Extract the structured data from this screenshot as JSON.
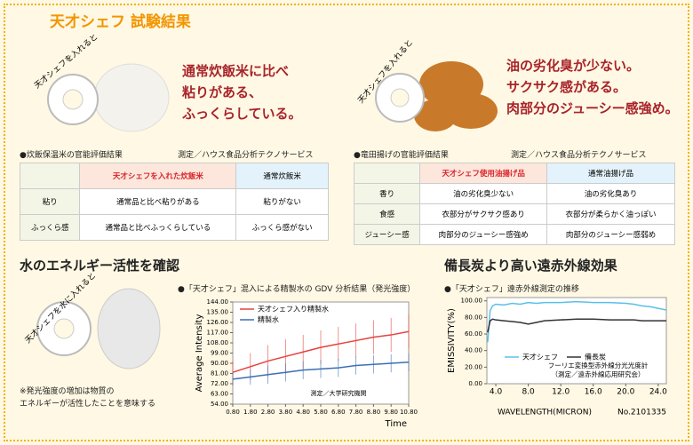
{
  "header": {
    "title": "天才シェフ 試験結果"
  },
  "sections": [
    {
      "ring_label": "天才シェフを入れると",
      "headline": [
        "通常炊飯米に比べ",
        "粘りがある、",
        "ふっくらしている。"
      ],
      "caption": "●炊飯保温米の官能評価結果",
      "source": "測定／ハウス食品分析テクノサービス",
      "table": {
        "header": [
          "",
          "天才シェフを入れた炊飯米",
          "通常炊飯米"
        ],
        "rows": [
          [
            "粘り",
            "通常品と比べ粘りがある",
            "粘りがない"
          ],
          [
            "ふっくら感",
            "通常品と比べふっくらしている",
            "ふっくら感がない"
          ]
        ]
      }
    },
    {
      "ring_label": "天才シェフを入れると",
      "headline": [
        "油の劣化臭が少ない。",
        "サクサク感がある。",
        "肉部分のジューシー感強め。"
      ],
      "caption": "●竜田揚げの官能評価結果",
      "source": "測定／ハウス食品分析テクノサービス",
      "table": {
        "header": [
          "",
          "天才シェフ使用油揚げ品",
          "通常油揚げ品"
        ],
        "rows": [
          [
            "香り",
            "油の劣化臭少ない",
            "油の劣化臭あり"
          ],
          [
            "食感",
            "衣部分がサクサク感あり",
            "衣部分が柔らかく油っぽい"
          ],
          [
            "ジューシー感",
            "肉部分のジューシー感強め",
            "肉部分のジューシー感弱め"
          ]
        ]
      }
    },
    {
      "heading": "水のエネルギー活性を確認",
      "ring_label": "天才シェフを水に入れると",
      "note": [
        "※発光強度の増加は物質の",
        "エネルギーが活性したことを意味する"
      ],
      "caption": "●「天才シェフ」混入による精製水の GDV 分析結果（発光強度）"
    },
    {
      "heading": "備長炭より高い遠赤外線効果",
      "caption": "●「天才シェフ」遠赤外線測定の推移"
    }
  ],
  "chart_data": [
    {
      "type": "line",
      "ylabel": "Average Intensity",
      "xlabel": "Time",
      "annotation": "測定／大学研究機関",
      "legend": "upper left",
      "grid": false,
      "x": [
        0.8,
        1.8,
        2.8,
        3.8,
        4.8,
        5.8,
        6.8,
        7.8,
        8.8,
        9.8,
        10.8
      ],
      "series": [
        {
          "name": "天才シェフ入り精製水",
          "color": "#e8413c",
          "values": [
            82,
            87,
            92,
            96,
            100,
            104,
            107,
            110,
            113,
            115,
            118
          ],
          "errors": [
            10,
            12,
            14,
            15,
            15,
            15,
            15,
            15,
            15,
            15,
            15
          ]
        },
        {
          "name": "精製水",
          "color": "#3a6fb5",
          "values": [
            76,
            78,
            80,
            82,
            84,
            85,
            86,
            88,
            89,
            90,
            91
          ],
          "errors": [
            6,
            7,
            8,
            8,
            8,
            8,
            8,
            8,
            8,
            8,
            8
          ]
        }
      ],
      "xlim": [
        0.8,
        10.8
      ],
      "ylim": [
        54,
        144
      ],
      "xticks": [
        {
          "value": 0.8,
          "label": "0.80"
        },
        {
          "value": 1.8,
          "label": "1.80"
        },
        {
          "value": 2.8,
          "label": "2.80"
        },
        {
          "value": 3.8,
          "label": "3.80"
        },
        {
          "value": 4.8,
          "label": "4.80"
        },
        {
          "value": 5.8,
          "label": "5.80"
        },
        {
          "value": 6.8,
          "label": "6.80"
        },
        {
          "value": 7.8,
          "label": "7.80"
        },
        {
          "value": 8.8,
          "label": "8.80"
        },
        {
          "value": 9.8,
          "label": "9.80"
        },
        {
          "value": 10.8,
          "label": "10.80"
        }
      ],
      "yticks": [
        {
          "value": 54,
          "label": "54.00"
        },
        {
          "value": 63,
          "label": "63.00"
        },
        {
          "value": 72,
          "label": "72.00"
        },
        {
          "value": 81,
          "label": "81.00"
        },
        {
          "value": 90,
          "label": "90.00"
        },
        {
          "value": 99,
          "label": "99.00"
        },
        {
          "value": 108,
          "label": "108.00"
        },
        {
          "value": 117,
          "label": "117.00"
        },
        {
          "value": 126,
          "label": "126.00"
        },
        {
          "value": 135,
          "label": "135.00"
        },
        {
          "value": 144,
          "label": "144.00"
        }
      ]
    },
    {
      "type": "line",
      "ylabel": "EMISSIVITY(%)",
      "xlabel": "WAVELENGTH(MICRON)",
      "annotation": "No.2101335",
      "notes": [
        "フーリエ変換型赤外線分光光度計",
        "（測定／遠赤外線応用研究会）"
      ],
      "legend": "lower left",
      "grid": false,
      "x": [
        3,
        3.3,
        3.6,
        4,
        5,
        6,
        7,
        8,
        9,
        10,
        12,
        14,
        16,
        18,
        20,
        21,
        22,
        23,
        24,
        25
      ],
      "series": [
        {
          "name": "天才シェフ",
          "color": "#5bc0e8",
          "values": [
            50,
            88,
            94,
            96,
            95,
            97,
            96,
            98,
            97,
            98,
            98,
            99,
            98,
            98,
            97,
            96,
            94,
            93,
            91,
            89
          ]
        },
        {
          "name": "備長炭",
          "color": "#333333",
          "values": [
            62,
            76,
            78,
            77,
            76,
            75,
            74,
            72,
            74,
            76,
            77,
            78,
            78,
            77,
            77,
            77,
            76,
            76,
            76,
            76
          ]
        }
      ],
      "xlim": [
        2.9,
        25
      ],
      "ylim": [
        0,
        104
      ],
      "xticks": [
        {
          "value": 4,
          "label": "4.0"
        },
        {
          "value": 8,
          "label": "8.0"
        },
        {
          "value": 12,
          "label": "12.0"
        },
        {
          "value": 16,
          "label": "16.0"
        },
        {
          "value": 20,
          "label": "20.0"
        },
        {
          "value": 24,
          "label": "24.0"
        }
      ],
      "yticks": [
        {
          "value": 0,
          "label": "0.00"
        },
        {
          "value": 20,
          "label": "20.00"
        },
        {
          "value": 40,
          "label": "40.00"
        },
        {
          "value": 60,
          "label": "60.00"
        },
        {
          "value": 80,
          "label": "80.00"
        },
        {
          "value": 100,
          "label": "100.00"
        }
      ]
    }
  ]
}
